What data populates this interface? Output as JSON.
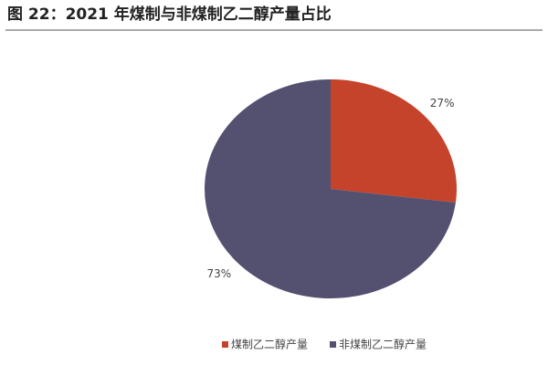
{
  "chart_data": {
    "type": "pie",
    "title": "图 22：2021 年煤制与非煤制乙二醇产量占比",
    "categories": [
      "煤制乙二醇产量",
      "非煤制乙二醇产量"
    ],
    "values": [
      27,
      73
    ],
    "value_labels": [
      "27%",
      "73%"
    ],
    "colors": [
      "#c5432a",
      "#545070"
    ],
    "legend": "bottom"
  }
}
